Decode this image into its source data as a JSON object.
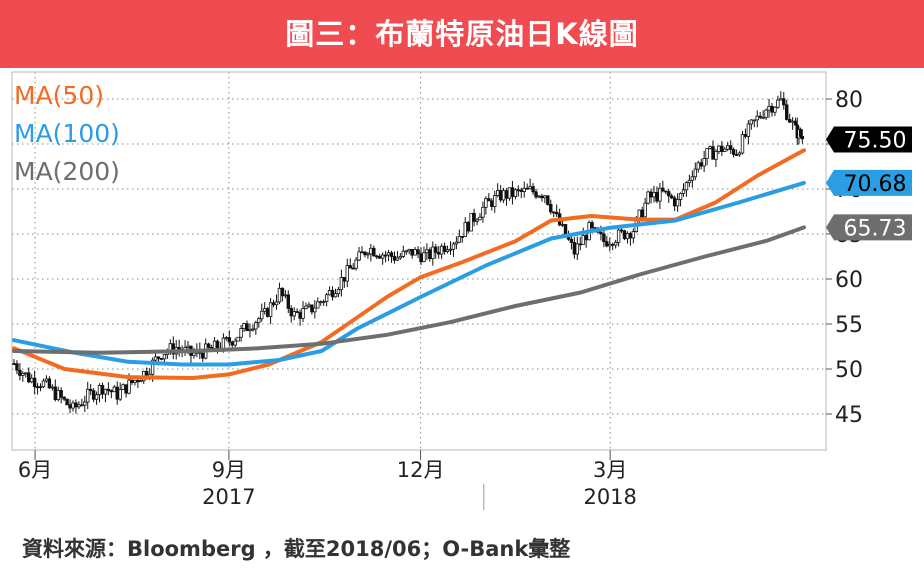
{
  "banner": {
    "title": "圖三：布蘭特原油日K線圖",
    "color": "#ef4b50"
  },
  "source": "資料來源：Bloomberg ，截至2018/06；O-Bank彙整",
  "chart_data": {
    "type": "candlestick",
    "title": "圖三：布蘭特原油日K線圖",
    "y_axis": {
      "position": "right",
      "range": [
        41,
        83
      ],
      "ticks": [
        {
          "value": 45,
          "label": "45"
        },
        {
          "value": 50,
          "label": "50"
        },
        {
          "value": 55,
          "label": "55"
        },
        {
          "value": 60,
          "label": "60"
        },
        {
          "value": 65,
          "label": "65"
        },
        {
          "value": 70,
          "label": "70"
        },
        {
          "value": 75,
          "label": "75"
        },
        {
          "value": 80,
          "label": "80"
        }
      ]
    },
    "x_axis": {
      "month_ticks": [
        {
          "label": "6月",
          "date": "2017-06-01"
        },
        {
          "label": "9月",
          "date": "2017-09-01"
        },
        {
          "label": "12月",
          "date": "2017-12-01"
        },
        {
          "label": "3月",
          "date": "2018-03-01"
        }
      ],
      "year_labels": [
        {
          "label": "2017",
          "date": "2017-09-01"
        },
        {
          "label": "2018",
          "date": "2018-03-01"
        }
      ],
      "range": [
        "2017-05-22",
        "2018-06-01"
      ]
    },
    "grid": true,
    "legend": {
      "position": "top-left",
      "items": [
        {
          "label": "MA(50)",
          "color": "#f26b21"
        },
        {
          "label": "MA(100)",
          "color": "#2a9de3"
        },
        {
          "label": "MA(200)",
          "color": "#6d6e70"
        }
      ]
    },
    "price_series": {
      "name": "Brent",
      "color": "#000000",
      "points": [
        [
          "2017-05-22",
          50.6
        ],
        [
          "2017-05-29",
          49.0
        ],
        [
          "2017-06-05",
          48.4
        ],
        [
          "2017-06-12",
          47.0
        ],
        [
          "2017-06-19",
          45.5
        ],
        [
          "2017-06-26",
          47.0
        ],
        [
          "2017-07-03",
          48.0
        ],
        [
          "2017-07-10",
          47.2
        ],
        [
          "2017-07-17",
          48.5
        ],
        [
          "2017-07-24",
          49.8
        ],
        [
          "2017-07-31",
          51.8
        ],
        [
          "2017-08-07",
          52.4
        ],
        [
          "2017-08-14",
          51.6
        ],
        [
          "2017-08-21",
          52.0
        ],
        [
          "2017-08-28",
          52.6
        ],
        [
          "2017-09-04",
          53.5
        ],
        [
          "2017-09-11",
          55.0
        ],
        [
          "2017-09-18",
          56.0
        ],
        [
          "2017-09-25",
          58.5
        ],
        [
          "2017-10-02",
          56.0
        ],
        [
          "2017-10-09",
          56.5
        ],
        [
          "2017-10-16",
          57.8
        ],
        [
          "2017-10-23",
          59.5
        ],
        [
          "2017-10-30",
          61.5
        ],
        [
          "2017-11-06",
          63.5
        ],
        [
          "2017-11-13",
          62.8
        ],
        [
          "2017-11-20",
          62.4
        ],
        [
          "2017-11-27",
          63.0
        ],
        [
          "2017-12-04",
          62.5
        ],
        [
          "2017-12-11",
          63.5
        ],
        [
          "2017-12-18",
          64.5
        ],
        [
          "2017-12-25",
          66.5
        ],
        [
          "2018-01-01",
          68.2
        ],
        [
          "2018-01-08",
          69.3
        ],
        [
          "2018-01-15",
          69.5
        ],
        [
          "2018-01-22",
          69.8
        ],
        [
          "2018-01-29",
          69.5
        ],
        [
          "2018-02-05",
          66.0
        ],
        [
          "2018-02-12",
          63.0
        ],
        [
          "2018-02-19",
          65.5
        ],
        [
          "2018-02-26",
          64.2
        ],
        [
          "2018-03-05",
          64.8
        ],
        [
          "2018-03-12",
          65.5
        ],
        [
          "2018-03-19",
          69.0
        ],
        [
          "2018-03-26",
          69.5
        ],
        [
          "2018-04-02",
          68.5
        ],
        [
          "2018-04-09",
          72.0
        ],
        [
          "2018-04-16",
          73.8
        ],
        [
          "2018-04-23",
          74.5
        ],
        [
          "2018-04-30",
          74.2
        ],
        [
          "2018-05-07",
          77.0
        ],
        [
          "2018-05-14",
          79.0
        ],
        [
          "2018-05-21",
          79.8
        ],
        [
          "2018-05-28",
          76.5
        ],
        [
          "2018-06-01",
          75.5
        ]
      ]
    },
    "series": [
      {
        "name": "MA(50)",
        "color": "#f26b21",
        "values": [
          [
            "2017-05-22",
            52.3
          ],
          [
            "2017-06-15",
            50.0
          ],
          [
            "2017-07-15",
            49.1
          ],
          [
            "2017-08-15",
            49.0
          ],
          [
            "2017-09-01",
            49.4
          ],
          [
            "2017-09-20",
            50.5
          ],
          [
            "2017-10-15",
            53.0
          ],
          [
            "2017-11-15",
            58.0
          ],
          [
            "2017-12-01",
            60.2
          ],
          [
            "2017-12-20",
            61.8
          ],
          [
            "2018-01-15",
            64.2
          ],
          [
            "2018-02-01",
            66.5
          ],
          [
            "2018-02-20",
            67.0
          ],
          [
            "2018-03-15",
            66.6
          ],
          [
            "2018-04-01",
            66.6
          ],
          [
            "2018-04-20",
            68.5
          ],
          [
            "2018-05-10",
            71.5
          ],
          [
            "2018-06-01",
            74.3
          ]
        ]
      },
      {
        "name": "MA(100)",
        "color": "#2a9de3",
        "values": [
          [
            "2017-05-22",
            53.2
          ],
          [
            "2017-06-20",
            51.8
          ],
          [
            "2017-07-15",
            50.8
          ],
          [
            "2017-08-10",
            50.5
          ],
          [
            "2017-09-01",
            50.5
          ],
          [
            "2017-09-25",
            51.0
          ],
          [
            "2017-10-15",
            52.0
          ],
          [
            "2017-11-01",
            54.5
          ],
          [
            "2017-12-01",
            58.0
          ],
          [
            "2018-01-01",
            61.5
          ],
          [
            "2018-02-01",
            64.5
          ],
          [
            "2018-03-01",
            65.7
          ],
          [
            "2018-04-01",
            66.5
          ],
          [
            "2018-05-01",
            68.5
          ],
          [
            "2018-06-01",
            70.68
          ]
        ]
      },
      {
        "name": "MA(200)",
        "color": "#6d6e70",
        "values": [
          [
            "2017-05-22",
            52.0
          ],
          [
            "2017-07-01",
            51.8
          ],
          [
            "2017-08-15",
            52.0
          ],
          [
            "2017-09-15",
            52.3
          ],
          [
            "2017-10-15",
            52.8
          ],
          [
            "2017-11-15",
            53.8
          ],
          [
            "2017-12-15",
            55.2
          ],
          [
            "2018-01-15",
            57.0
          ],
          [
            "2018-02-15",
            58.5
          ],
          [
            "2018-03-15",
            60.5
          ],
          [
            "2018-04-15",
            62.5
          ],
          [
            "2018-05-15",
            64.3
          ],
          [
            "2018-06-01",
            65.73
          ]
        ]
      }
    ],
    "value_tags": [
      {
        "label": "75.50",
        "value": 75.5,
        "background": "#000000",
        "color": "#ffffff"
      },
      {
        "label": "70.68",
        "value": 70.68,
        "background": "#2a9de3",
        "color": "#000000"
      },
      {
        "label": "65.73",
        "value": 65.73,
        "background": "#6d6e70",
        "color": "#ffffff"
      }
    ]
  }
}
